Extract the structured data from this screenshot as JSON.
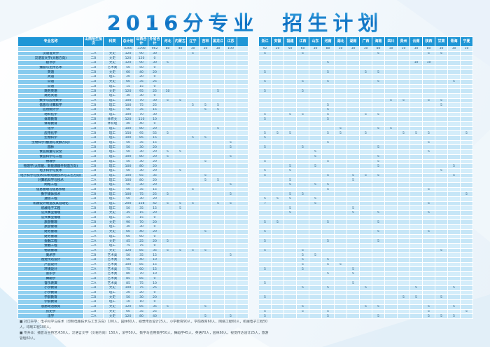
{
  "title": {
    "part1": "2016分专业",
    "part2": "招生计划"
  },
  "colors": {
    "accent_blue": "#1e96d6",
    "title_blue": "#0d6fc2",
    "name_cell_blue": "#8bcdee",
    "row_light": "#d4edfa",
    "row_dark": "#c6e6f7"
  },
  "table": {
    "base_headers": [
      "专业名称",
      "山西招生批次",
      "科类",
      "总计划",
      "山西合计",
      "外省合计"
    ],
    "left_provinces": [
      "河北",
      "内蒙古",
      "辽宁",
      "吉林",
      "黑龙江",
      "江苏"
    ],
    "right_provinces": [
      "浙江",
      "安徽",
      "福建",
      "江西",
      "山东",
      "河南",
      "湖北",
      "湖南",
      "广西",
      "海南",
      "四川",
      "贵州",
      "云南",
      "陕西",
      "甘肃",
      "青海",
      "宁夏"
    ],
    "rows": [
      {
        "name": "",
        "batch": "",
        "category": "",
        "total": 4260,
        "shanxi": 3298,
        "other": 962,
        "extras": {
          "河北": 80,
          "内蒙古": 40,
          "辽宁": 30,
          "吉林": 30,
          "黑龙江": 30,
          "江苏": 100,
          "浙江": 92,
          "安徽": 20,
          "福建": 50,
          "江西": 60,
          "山东": 30,
          "河南": 80,
          "湖北": 10,
          "湖南": 30,
          "广西": 30,
          "海南": 80,
          "四川": 10,
          "贵州": 10,
          "云南": 30,
          "陕西": 80,
          "甘肃": 30,
          "青海": 30,
          "宁夏": 10
        }
      },
      {
        "name": "汉语言文学",
        "batch": "二A",
        "category": "文史",
        "total": 120,
        "shanxi": 90,
        "other": 30,
        "extras": {
          "辽宁": 5,
          "浙江": 5,
          "江西": 5,
          "海南": 5,
          "陕西": 5,
          "甘肃": 5
        }
      },
      {
        "name": "汉语言文学(文秘方向)",
        "batch": "二B",
        "category": "文史",
        "total": 120,
        "shanxi": 120,
        "other": 0,
        "extras": {}
      },
      {
        "name": "秘书学",
        "batch": "二B",
        "category": "文史",
        "total": 120,
        "shanxi": 90,
        "other": 30,
        "extras": {
          "河北": 5,
          "河南": 5,
          "云南": 10,
          "陕西": 10
        }
      },
      {
        "name": "播音与主持艺术",
        "batch": "二B",
        "category": "艺术类",
        "total": 50,
        "shanxi": 50,
        "other": 0,
        "extras": {}
      },
      {
        "name": "英语",
        "batch": "二B",
        "category": "文史",
        "total": 60,
        "shanxi": 40,
        "other": 20,
        "extras": {
          "浙江": 5,
          "河南": 5,
          "广西": 5,
          "海南": 5
        }
      },
      {
        "name": "英语",
        "batch": "二B",
        "category": "理工",
        "total": 20,
        "shanxi": 20,
        "other": 0,
        "extras": {}
      },
      {
        "name": "日语",
        "batch": "二B",
        "category": "文史",
        "total": 60,
        "shanxi": 35,
        "other": 25,
        "extras": {
          "浙江": 5,
          "江西": 5,
          "河南": 5,
          "海南": 5,
          "青海": 5
        }
      },
      {
        "name": "日语",
        "batch": "二B",
        "category": "理工",
        "total": 15,
        "shanxi": 15,
        "other": 0,
        "extras": {}
      },
      {
        "name": "商务英语",
        "batch": "二B",
        "category": "文史",
        "total": 120,
        "shanxi": 95,
        "other": 25,
        "extras": {
          "河北": 10,
          "黑龙江": 5,
          "浙江": 5,
          "江西": 5
        }
      },
      {
        "name": "商务英语",
        "batch": "二B",
        "category": "理工",
        "total": 30,
        "shanxi": 30,
        "other": 0,
        "extras": {}
      },
      {
        "name": "数学与应用数学",
        "batch": "二A",
        "category": "理工",
        "total": 100,
        "shanxi": 70,
        "other": 30,
        "extras": {
          "河北": 5,
          "内蒙古": 5,
          "四川": 5,
          "贵州": 5,
          "陕西": 5,
          "甘肃": 5
        }
      },
      {
        "name": "信息与计算科学",
        "batch": "二B",
        "category": "理工",
        "total": 100,
        "shanxi": 75,
        "other": 25,
        "extras": {
          "辽宁": 5,
          "吉林": 5,
          "黑龙江": 5,
          "河南": 5,
          "甘肃": 5
        }
      },
      {
        "name": "应用统计学",
        "batch": "二B",
        "category": "理工",
        "total": 50,
        "shanxi": 35,
        "other": 15,
        "extras": {
          "吉林": 5,
          "黑龙江": 5,
          "河南": 5
        }
      },
      {
        "name": "材料化学",
        "batch": "二B",
        "category": "理工",
        "total": 100,
        "shanxi": 70,
        "other": 30,
        "extras": {
          "浙江": 5,
          "福建": 5,
          "江西": 5,
          "河南": 5,
          "广西": 5,
          "海南": 5
        }
      },
      {
        "name": "体育教育",
        "batch": "二B",
        "category": "体育文",
        "total": 120,
        "shanxi": 110,
        "other": 10,
        "extras": {
          "浙江": 5,
          "河南": 5
        }
      },
      {
        "name": "体育教育",
        "batch": "二B",
        "category": "体育理",
        "total": 40,
        "shanxi": 40,
        "other": 0,
        "extras": {}
      },
      {
        "name": "化学",
        "batch": "二B",
        "category": "理工",
        "total": 100,
        "shanxi": 80,
        "other": 20,
        "extras": {
          "黑龙江": 5,
          "湖北": 5,
          "海南": 5,
          "四川": 5
        }
      },
      {
        "name": "应用化学",
        "batch": "二B",
        "category": "理工",
        "total": 150,
        "shanxi": 95,
        "other": 55,
        "extras": {
          "河北": 5,
          "浙江": 5,
          "安徽": 5,
          "福建": 5,
          "河南": 5,
          "湖北": 5,
          "广西": 5,
          "贵州": 5,
          "云南": 5,
          "陕西": 5,
          "宁夏": 5
        }
      },
      {
        "name": "生物科学",
        "batch": "二B",
        "category": "理工",
        "total": 100,
        "shanxi": 85,
        "other": 15,
        "extras": {
          "辽宁": 5,
          "吉林": 5,
          "浙江": 5
        }
      },
      {
        "name": "生物科学(酿酒与发酵方向)",
        "batch": "二B",
        "category": "理工",
        "total": 50,
        "shanxi": 35,
        "other": 15,
        "extras": {
          "江苏": 5,
          "河南": 5,
          "陕西": 5
        }
      },
      {
        "name": "园林",
        "batch": "二B",
        "category": "理工",
        "total": 50,
        "shanxi": 30,
        "other": 20,
        "extras": {
          "江苏": 5,
          "浙江": 5,
          "江西": 5,
          "海南": 5
        }
      },
      {
        "name": "食品质量与安全",
        "batch": "二B",
        "category": "理工",
        "total": 50,
        "shanxi": 30,
        "other": 20,
        "extras": {
          "河北": 5,
          "内蒙古": 5,
          "山东": 5,
          "陕西": 5
        }
      },
      {
        "name": "食品科学与工程",
        "batch": "二B",
        "category": "理工",
        "total": 100,
        "shanxi": 80,
        "other": 20,
        "extras": {
          "河北": 5,
          "江苏": 5,
          "山东": 5,
          "海南": 5
        }
      },
      {
        "name": "物理学",
        "batch": "二B",
        "category": "理工",
        "total": 50,
        "shanxi": 30,
        "other": 20,
        "extras": {
          "吉林": 5,
          "浙江": 5,
          "河南": 5,
          "海南": 5
        }
      },
      {
        "name": "物理学(太阳能、新能源器件制造方向)",
        "batch": "二B",
        "category": "理工",
        "total": 100,
        "shanxi": 80,
        "other": 20,
        "extras": {
          "福建": 5,
          "山东": 5,
          "海南": 5,
          "青海": 5
        }
      },
      {
        "name": "电子科学与技术",
        "batch": "二B",
        "category": "理工",
        "total": 50,
        "shanxi": 30,
        "other": 20,
        "extras": {
          "内蒙古": 5,
          "浙江": 5,
          "福建": 5,
          "甘肃": 5
        }
      },
      {
        "name": "电子科学与技术(印制电路技术与工艺方向)",
        "batch": "二B",
        "category": "理工",
        "total": 100,
        "shanxi": 65,
        "other": 35,
        "extras": {
          "吉林": 5,
          "浙江": 5,
          "河南": 5,
          "湖南": 5,
          "广西": 5,
          "海南": 5,
          "青海": 5
        }
      },
      {
        "name": "计算机科学与技术",
        "batch": "二A",
        "category": "理工",
        "total": 100,
        "shanxi": 80,
        "other": 20,
        "extras": {
          "吉林": 5,
          "黑龙江": 5,
          "福建": 5,
          "湖南": 5
        }
      },
      {
        "name": "网络工程",
        "batch": "二B",
        "category": "理工",
        "total": 50,
        "shanxi": 30,
        "other": 20,
        "extras": {
          "江苏": 5,
          "福建": 5,
          "山东": 5,
          "河南": 5
        }
      },
      {
        "name": "信息管理与信息系统",
        "batch": "二B",
        "category": "理工",
        "total": 50,
        "shanxi": 35,
        "other": 15,
        "extras": {
          "辽宁": 5,
          "河南": 5,
          "陕西": 5
        }
      },
      {
        "name": "数字媒体技术",
        "batch": "二B",
        "category": "理工",
        "total": 100,
        "shanxi": 75,
        "other": 25,
        "extras": {
          "河北": 5,
          "江苏": 5,
          "福建": 5,
          "江西": 5,
          "宁夏": 5
        }
      },
      {
        "name": "通信工程",
        "batch": "二B",
        "category": "理工",
        "total": 50,
        "shanxi": 30,
        "other": 20,
        "extras": {
          "浙江": 5,
          "安徽": 5,
          "福建": 5,
          "山东": 5
        }
      },
      {
        "name": "机械设计制造及其自动化",
        "batch": "二A",
        "category": "理工",
        "total": 200,
        "shanxi": 158,
        "other": 42,
        "extras": {
          "河北": 5,
          "内蒙古": 5,
          "辽宁": 5,
          "黑龙江": 5,
          "江苏": 5,
          "浙江": 7,
          "山东": 5,
          "陕西": 5
        }
      },
      {
        "name": "机械电子工程",
        "batch": "二B",
        "category": "理工",
        "total": 50,
        "shanxi": 35,
        "other": 15,
        "extras": {
          "内蒙古": 5,
          "福建": 5,
          "湖南": 5
        }
      },
      {
        "name": "公共事业管理",
        "batch": "二B",
        "category": "文史",
        "total": 35,
        "shanxi": 15,
        "other": 20,
        "extras": {
          "福建": 5,
          "湖南": 5,
          "海南": 5,
          "陕西": 5
        }
      },
      {
        "name": "公共事业管理",
        "batch": "二B",
        "category": "理工",
        "total": 15,
        "shanxi": 15,
        "other": 0,
        "extras": {}
      },
      {
        "name": "旅游管理",
        "batch": "二B",
        "category": "文史",
        "total": 90,
        "shanxi": 70,
        "other": 20,
        "extras": {
          "浙江": 5,
          "安徽": 5,
          "河南": 5,
          "海南": 5
        }
      },
      {
        "name": "旅游管理",
        "batch": "二B",
        "category": "理工",
        "total": 30,
        "shanxi": 30,
        "other": 0,
        "extras": {}
      },
      {
        "name": "财务管理",
        "batch": "二A",
        "category": "文史",
        "total": 60,
        "shanxi": 40,
        "other": 20,
        "extras": {
          "吉林": 5,
          "浙江": 5,
          "海南": 5,
          "陕西": 5
        }
      },
      {
        "name": "财务管理",
        "batch": "二A",
        "category": "理工",
        "total": 60,
        "shanxi": 60,
        "other": 0,
        "extras": {}
      },
      {
        "name": "金融工程",
        "batch": "二A",
        "category": "文史",
        "total": 45,
        "shanxi": 25,
        "other": 20,
        "extras": {
          "河北": 5,
          "浙江": 5,
          "河南": 5,
          "海南": 5
        }
      },
      {
        "name": "金融工程",
        "batch": "二A",
        "category": "理工",
        "total": 75,
        "shanxi": 75,
        "other": 0,
        "extras": {}
      },
      {
        "name": "物流管理",
        "batch": "二A",
        "category": "文史",
        "total": 120,
        "shanxi": 85,
        "other": 35,
        "extras": {
          "河北": 5,
          "内蒙古": 5,
          "辽宁": 5,
          "吉林": 5,
          "浙江": 5,
          "江西": 5,
          "甘肃": 5
        }
      },
      {
        "name": "美术学",
        "batch": "二B",
        "category": "艺术类",
        "total": 50,
        "shanxi": 35,
        "other": 15,
        "extras": {
          "江苏": 5,
          "江西": 5,
          "山东": 5
        }
      },
      {
        "name": "视觉传达设计",
        "batch": "二B",
        "category": "艺术类",
        "total": 50,
        "shanxi": 40,
        "other": 10,
        "extras": {
          "江西": 5,
          "河南": 5
        }
      },
      {
        "name": "产品设计",
        "batch": "二A",
        "category": "艺术类",
        "total": 100,
        "shanxi": 85,
        "other": 15,
        "extras": {
          "江西": 5,
          "河南": 5,
          "湖北": 5
        }
      },
      {
        "name": "环境设计",
        "batch": "二A",
        "category": "艺术类",
        "total": 75,
        "shanxi": 60,
        "other": 15,
        "extras": {
          "浙江": 5,
          "江西": 5,
          "湖南": 5
        }
      },
      {
        "name": "音乐学",
        "batch": "二A",
        "category": "艺术类",
        "total": 80,
        "shanxi": 70,
        "other": 10,
        "extras": {
          "河南": 5,
          "湖南": 5
        }
      },
      {
        "name": "舞蹈学",
        "batch": "二B",
        "category": "艺术类",
        "total": 85,
        "shanxi": 85,
        "other": 0,
        "extras": {}
      },
      {
        "name": "音乐表演",
        "batch": "二A",
        "category": "艺术类",
        "total": 85,
        "shanxi": 75,
        "other": 10,
        "extras": {
          "浙江": 5,
          "湖南": 5
        }
      },
      {
        "name": "小学教育",
        "batch": "二B",
        "category": "文史",
        "total": 100,
        "shanxi": 75,
        "other": 25,
        "extras": {
          "江西": 5,
          "河南": 5,
          "广西": 5,
          "云南": 5,
          "青海": 5
        }
      },
      {
        "name": "小学教育",
        "batch": "二B",
        "category": "理工",
        "total": 20,
        "shanxi": 20,
        "other": 0,
        "extras": {}
      },
      {
        "name": "学前教育",
        "batch": "二B",
        "category": "文史",
        "total": 50,
        "shanxi": 30,
        "other": 20,
        "extras": {
          "浙江": 5,
          "贵州": 5,
          "云南": 5,
          "甘肃": 5
        }
      },
      {
        "name": "学前教育",
        "batch": "二B",
        "category": "理工",
        "total": 10,
        "shanxi": 10,
        "other": 0,
        "extras": {}
      },
      {
        "name": "思想政治教育",
        "batch": "二B",
        "category": "文史",
        "total": 120,
        "shanxi": 85,
        "other": 35,
        "extras": {
          "河北": 5,
          "吉林": 5,
          "江西": 5,
          "广西": 5,
          "海南": 5,
          "陕西": 5,
          "青海": 5
        }
      },
      {
        "name": "历史学",
        "batch": "二B",
        "category": "文史",
        "total": 60,
        "shanxi": 35,
        "other": 25,
        "extras": {
          "浙江": 5,
          "江西": 5,
          "河南": 5,
          "陕西": 5,
          "宁夏": 5
        }
      },
      {
        "name": "法学",
        "batch": "二A",
        "category": "文史",
        "total": 120,
        "shanxi": 80,
        "other": 40,
        "extras": {
          "吉林": 5,
          "江苏": 5,
          "浙江": 5,
          "河南": 5,
          "海南": 5,
          "陕西": 5,
          "甘肃": 5,
          "青海": 5
        }
      }
    ]
  },
  "footnotes": [
    "■ 对口升学：电子科学与技术（印制电路技术与工艺方向）100人，园林60人，视觉传达设计25人，小学教育90人，学前教育60人，网络工程60人，机械电子工程50人，印刷工程100人。",
    "■ 专升本：播音与主持艺术50人，汉语言文学（文秘方向）150人，法学50人，数学与应用数学50人，舞蹈学45人，英语70人，园林60人，视觉传达设计25人，旅游管理60人。"
  ]
}
